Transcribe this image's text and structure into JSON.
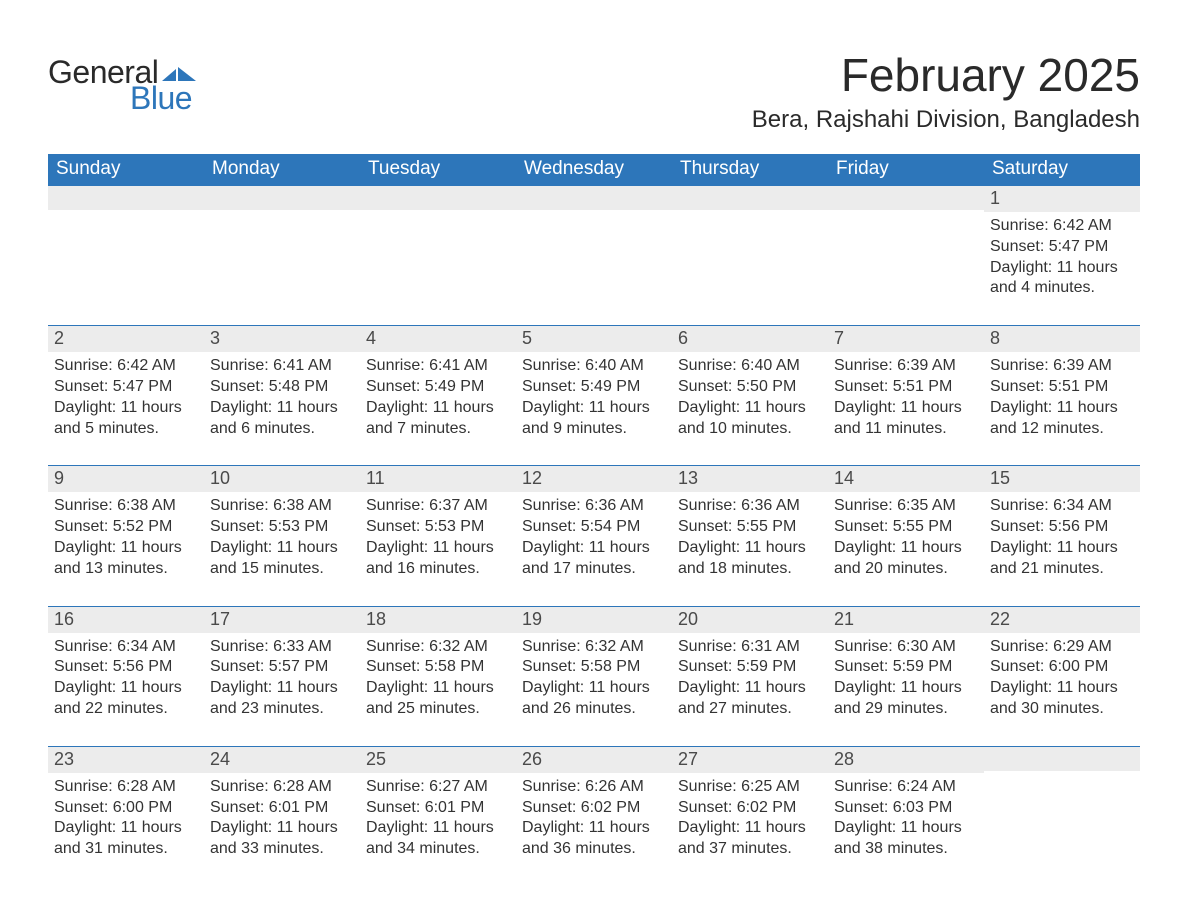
{
  "logo": {
    "text1": "General",
    "text2": "Blue"
  },
  "title": "February 2025",
  "location": "Bera, Rajshahi Division, Bangladesh",
  "colors": {
    "header_bg": "#2d76ba",
    "header_text": "#ffffff",
    "daybar_bg": "#ececec",
    "text": "#333333",
    "logo_blue": "#2d76ba"
  },
  "weekdays": [
    "Sunday",
    "Monday",
    "Tuesday",
    "Wednesday",
    "Thursday",
    "Friday",
    "Saturday"
  ],
  "weeks": [
    [
      null,
      null,
      null,
      null,
      null,
      null,
      {
        "n": "1",
        "sunrise": "6:42 AM",
        "sunset": "5:47 PM",
        "daylight": "11 hours and 4 minutes."
      }
    ],
    [
      {
        "n": "2",
        "sunrise": "6:42 AM",
        "sunset": "5:47 PM",
        "daylight": "11 hours and 5 minutes."
      },
      {
        "n": "3",
        "sunrise": "6:41 AM",
        "sunset": "5:48 PM",
        "daylight": "11 hours and 6 minutes."
      },
      {
        "n": "4",
        "sunrise": "6:41 AM",
        "sunset": "5:49 PM",
        "daylight": "11 hours and 7 minutes."
      },
      {
        "n": "5",
        "sunrise": "6:40 AM",
        "sunset": "5:49 PM",
        "daylight": "11 hours and 9 minutes."
      },
      {
        "n": "6",
        "sunrise": "6:40 AM",
        "sunset": "5:50 PM",
        "daylight": "11 hours and 10 minutes."
      },
      {
        "n": "7",
        "sunrise": "6:39 AM",
        "sunset": "5:51 PM",
        "daylight": "11 hours and 11 minutes."
      },
      {
        "n": "8",
        "sunrise": "6:39 AM",
        "sunset": "5:51 PM",
        "daylight": "11 hours and 12 minutes."
      }
    ],
    [
      {
        "n": "9",
        "sunrise": "6:38 AM",
        "sunset": "5:52 PM",
        "daylight": "11 hours and 13 minutes."
      },
      {
        "n": "10",
        "sunrise": "6:38 AM",
        "sunset": "5:53 PM",
        "daylight": "11 hours and 15 minutes."
      },
      {
        "n": "11",
        "sunrise": "6:37 AM",
        "sunset": "5:53 PM",
        "daylight": "11 hours and 16 minutes."
      },
      {
        "n": "12",
        "sunrise": "6:36 AM",
        "sunset": "5:54 PM",
        "daylight": "11 hours and 17 minutes."
      },
      {
        "n": "13",
        "sunrise": "6:36 AM",
        "sunset": "5:55 PM",
        "daylight": "11 hours and 18 minutes."
      },
      {
        "n": "14",
        "sunrise": "6:35 AM",
        "sunset": "5:55 PM",
        "daylight": "11 hours and 20 minutes."
      },
      {
        "n": "15",
        "sunrise": "6:34 AM",
        "sunset": "5:56 PM",
        "daylight": "11 hours and 21 minutes."
      }
    ],
    [
      {
        "n": "16",
        "sunrise": "6:34 AM",
        "sunset": "5:56 PM",
        "daylight": "11 hours and 22 minutes."
      },
      {
        "n": "17",
        "sunrise": "6:33 AM",
        "sunset": "5:57 PM",
        "daylight": "11 hours and 23 minutes."
      },
      {
        "n": "18",
        "sunrise": "6:32 AM",
        "sunset": "5:58 PM",
        "daylight": "11 hours and 25 minutes."
      },
      {
        "n": "19",
        "sunrise": "6:32 AM",
        "sunset": "5:58 PM",
        "daylight": "11 hours and 26 minutes."
      },
      {
        "n": "20",
        "sunrise": "6:31 AM",
        "sunset": "5:59 PM",
        "daylight": "11 hours and 27 minutes."
      },
      {
        "n": "21",
        "sunrise": "6:30 AM",
        "sunset": "5:59 PM",
        "daylight": "11 hours and 29 minutes."
      },
      {
        "n": "22",
        "sunrise": "6:29 AM",
        "sunset": "6:00 PM",
        "daylight": "11 hours and 30 minutes."
      }
    ],
    [
      {
        "n": "23",
        "sunrise": "6:28 AM",
        "sunset": "6:00 PM",
        "daylight": "11 hours and 31 minutes."
      },
      {
        "n": "24",
        "sunrise": "6:28 AM",
        "sunset": "6:01 PM",
        "daylight": "11 hours and 33 minutes."
      },
      {
        "n": "25",
        "sunrise": "6:27 AM",
        "sunset": "6:01 PM",
        "daylight": "11 hours and 34 minutes."
      },
      {
        "n": "26",
        "sunrise": "6:26 AM",
        "sunset": "6:02 PM",
        "daylight": "11 hours and 36 minutes."
      },
      {
        "n": "27",
        "sunrise": "6:25 AM",
        "sunset": "6:02 PM",
        "daylight": "11 hours and 37 minutes."
      },
      {
        "n": "28",
        "sunrise": "6:24 AM",
        "sunset": "6:03 PM",
        "daylight": "11 hours and 38 minutes."
      },
      null
    ]
  ],
  "labels": {
    "sunrise": "Sunrise: ",
    "sunset": "Sunset: ",
    "daylight": "Daylight: "
  }
}
